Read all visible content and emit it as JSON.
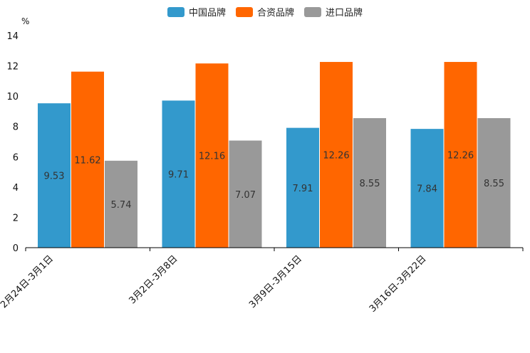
{
  "chart_data": {
    "type": "bar",
    "unit": "%",
    "categories": [
      "2月24日-3月1日",
      "3月2日-3月8日",
      "3月9日-3月15日",
      "3月16日-3月22日"
    ],
    "series": [
      {
        "name": "中国品牌",
        "color": "#3399cc",
        "values": [
          9.53,
          9.71,
          7.91,
          7.84
        ]
      },
      {
        "name": "合资品牌",
        "color": "#ff6600",
        "values": [
          11.62,
          12.16,
          12.26,
          12.26
        ]
      },
      {
        "name": "进口品牌",
        "color": "#999999",
        "values": [
          5.74,
          7.07,
          8.55,
          8.55
        ]
      }
    ],
    "yticks": [
      0,
      2,
      4,
      6,
      8,
      10,
      12,
      14
    ],
    "ylim": [
      0,
      14
    ],
    "legend_position": "top-center"
  }
}
